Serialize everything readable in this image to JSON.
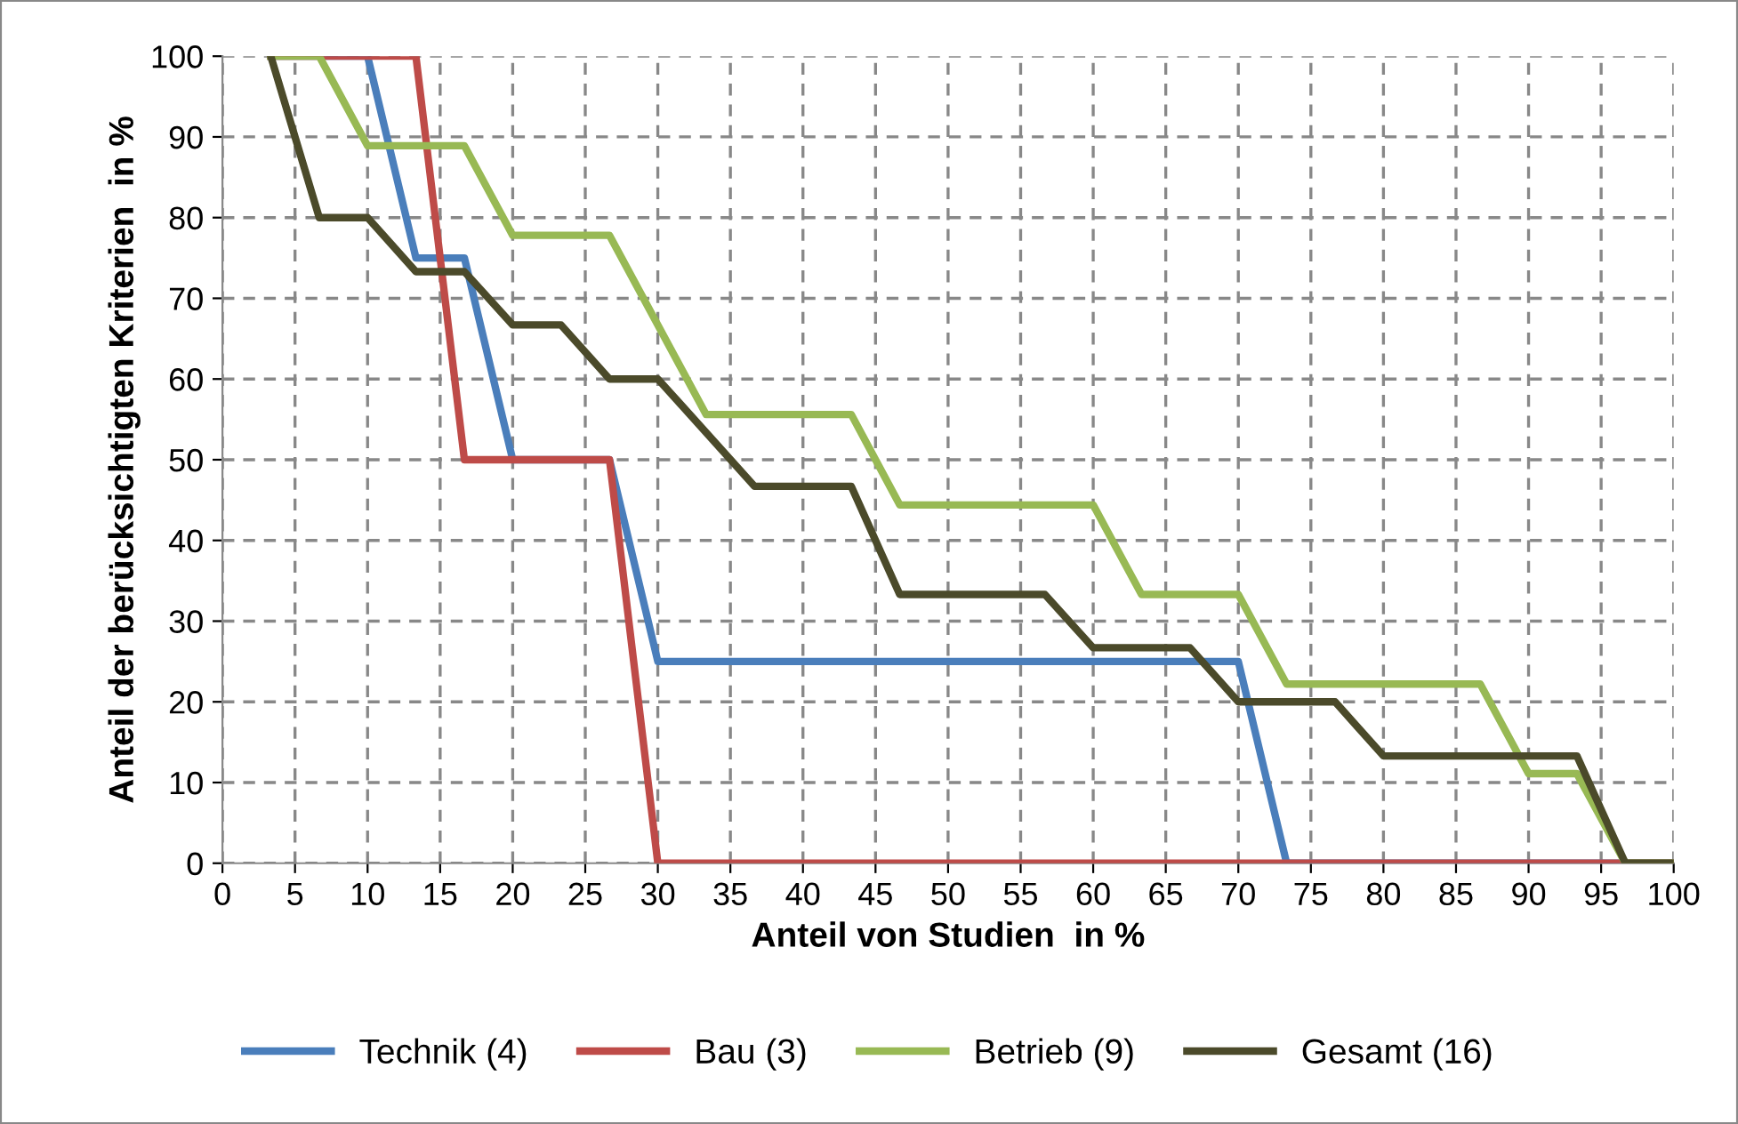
{
  "chart_data": {
    "type": "line",
    "xlabel": "Anteil von Studien  in %",
    "ylabel": "Anteil der berücksichtigten Kriterien  in %",
    "xlim": [
      0,
      100
    ],
    "ylim": [
      0,
      100
    ],
    "xticks": [
      0,
      5,
      10,
      15,
      20,
      25,
      30,
      35,
      40,
      45,
      50,
      55,
      60,
      65,
      70,
      75,
      80,
      85,
      90,
      95,
      100
    ],
    "yticks": [
      0,
      10,
      20,
      30,
      40,
      50,
      60,
      70,
      80,
      90,
      100
    ],
    "grid": true,
    "legend": "bottom",
    "marker": "none",
    "line_style": "solid",
    "series": [
      {
        "name": "Technik (4)",
        "color": "#4a7ebb",
        "x": [
          3.33,
          10,
          13.33,
          16.67,
          20,
          26.67,
          30,
          70,
          73.33,
          100
        ],
        "values": [
          100,
          100,
          75,
          75,
          50,
          50,
          25,
          25,
          0,
          0
        ]
      },
      {
        "name": "Bau (3)",
        "color": "#be4b48",
        "x": [
          3.33,
          13.33,
          16.67,
          26.67,
          30,
          100
        ],
        "values": [
          100,
          100,
          50,
          50,
          0,
          0
        ]
      },
      {
        "name": "Betrieb (9)",
        "color": "#98b954",
        "x": [
          3.33,
          6.67,
          10,
          16.67,
          20,
          26.67,
          33.33,
          43.33,
          46.67,
          60,
          63.33,
          70,
          73.33,
          86.67,
          90,
          93.33,
          96.67,
          100
        ],
        "values": [
          100,
          100,
          88.9,
          88.9,
          77.8,
          77.8,
          55.6,
          55.6,
          44.4,
          44.4,
          33.3,
          33.3,
          22.2,
          22.2,
          11.1,
          11.1,
          0,
          0
        ]
      },
      {
        "name": "Gesamt (16)",
        "color": "#4b4a2a",
        "x": [
          3.33,
          6.67,
          10,
          13.33,
          16.67,
          20,
          23.33,
          26.67,
          30,
          36.67,
          43.33,
          46.67,
          56.67,
          60,
          66.67,
          70,
          76.67,
          80,
          93.33,
          96.67,
          100
        ],
        "values": [
          100,
          80,
          80,
          73.3,
          73.3,
          66.7,
          66.7,
          60,
          60,
          46.7,
          46.7,
          33.3,
          33.3,
          26.7,
          26.7,
          20,
          20,
          13.3,
          13.3,
          0,
          0
        ]
      }
    ]
  }
}
